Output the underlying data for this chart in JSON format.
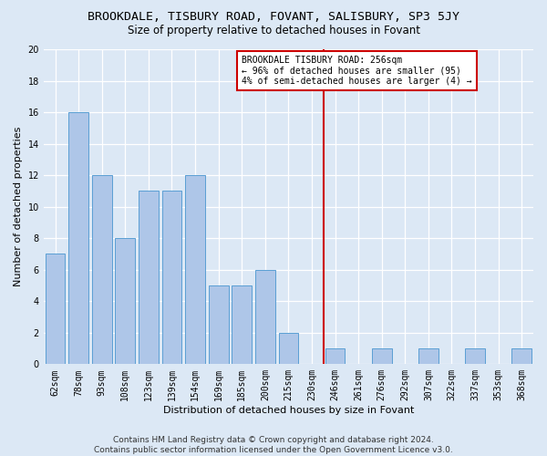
{
  "title": "BROOKDALE, TISBURY ROAD, FOVANT, SALISBURY, SP3 5JY",
  "subtitle": "Size of property relative to detached houses in Fovant",
  "xlabel": "Distribution of detached houses by size in Fovant",
  "ylabel": "Number of detached properties",
  "categories": [
    "62sqm",
    "78sqm",
    "93sqm",
    "108sqm",
    "123sqm",
    "139sqm",
    "154sqm",
    "169sqm",
    "185sqm",
    "200sqm",
    "215sqm",
    "230sqm",
    "246sqm",
    "261sqm",
    "276sqm",
    "292sqm",
    "307sqm",
    "322sqm",
    "337sqm",
    "353sqm",
    "368sqm"
  ],
  "values": [
    7,
    16,
    12,
    8,
    11,
    11,
    12,
    5,
    5,
    6,
    2,
    0,
    1,
    0,
    1,
    0,
    1,
    0,
    1,
    0,
    1
  ],
  "bar_color": "#aec6e8",
  "bar_edge_color": "#5a9fd4",
  "vline_color": "#cc0000",
  "vline_pos": 11.5,
  "annotation_title": "BROOKDALE TISBURY ROAD: 256sqm",
  "annotation_line2": "← 96% of detached houses are smaller (95)",
  "annotation_line3": "4% of semi-detached houses are larger (4) →",
  "annotation_box_color": "#cc0000",
  "annotation_bg": "#ffffff",
  "ylim": [
    0,
    20
  ],
  "yticks": [
    0,
    2,
    4,
    6,
    8,
    10,
    12,
    14,
    16,
    18,
    20
  ],
  "footer_line1": "Contains HM Land Registry data © Crown copyright and database right 2024.",
  "footer_line2": "Contains public sector information licensed under the Open Government Licence v3.0.",
  "bg_color": "#dce8f5",
  "grid_color": "#ffffff",
  "title_fontsize": 9.5,
  "subtitle_fontsize": 8.5,
  "tick_fontsize": 7,
  "ylabel_fontsize": 8,
  "xlabel_fontsize": 8,
  "footer_fontsize": 6.5
}
